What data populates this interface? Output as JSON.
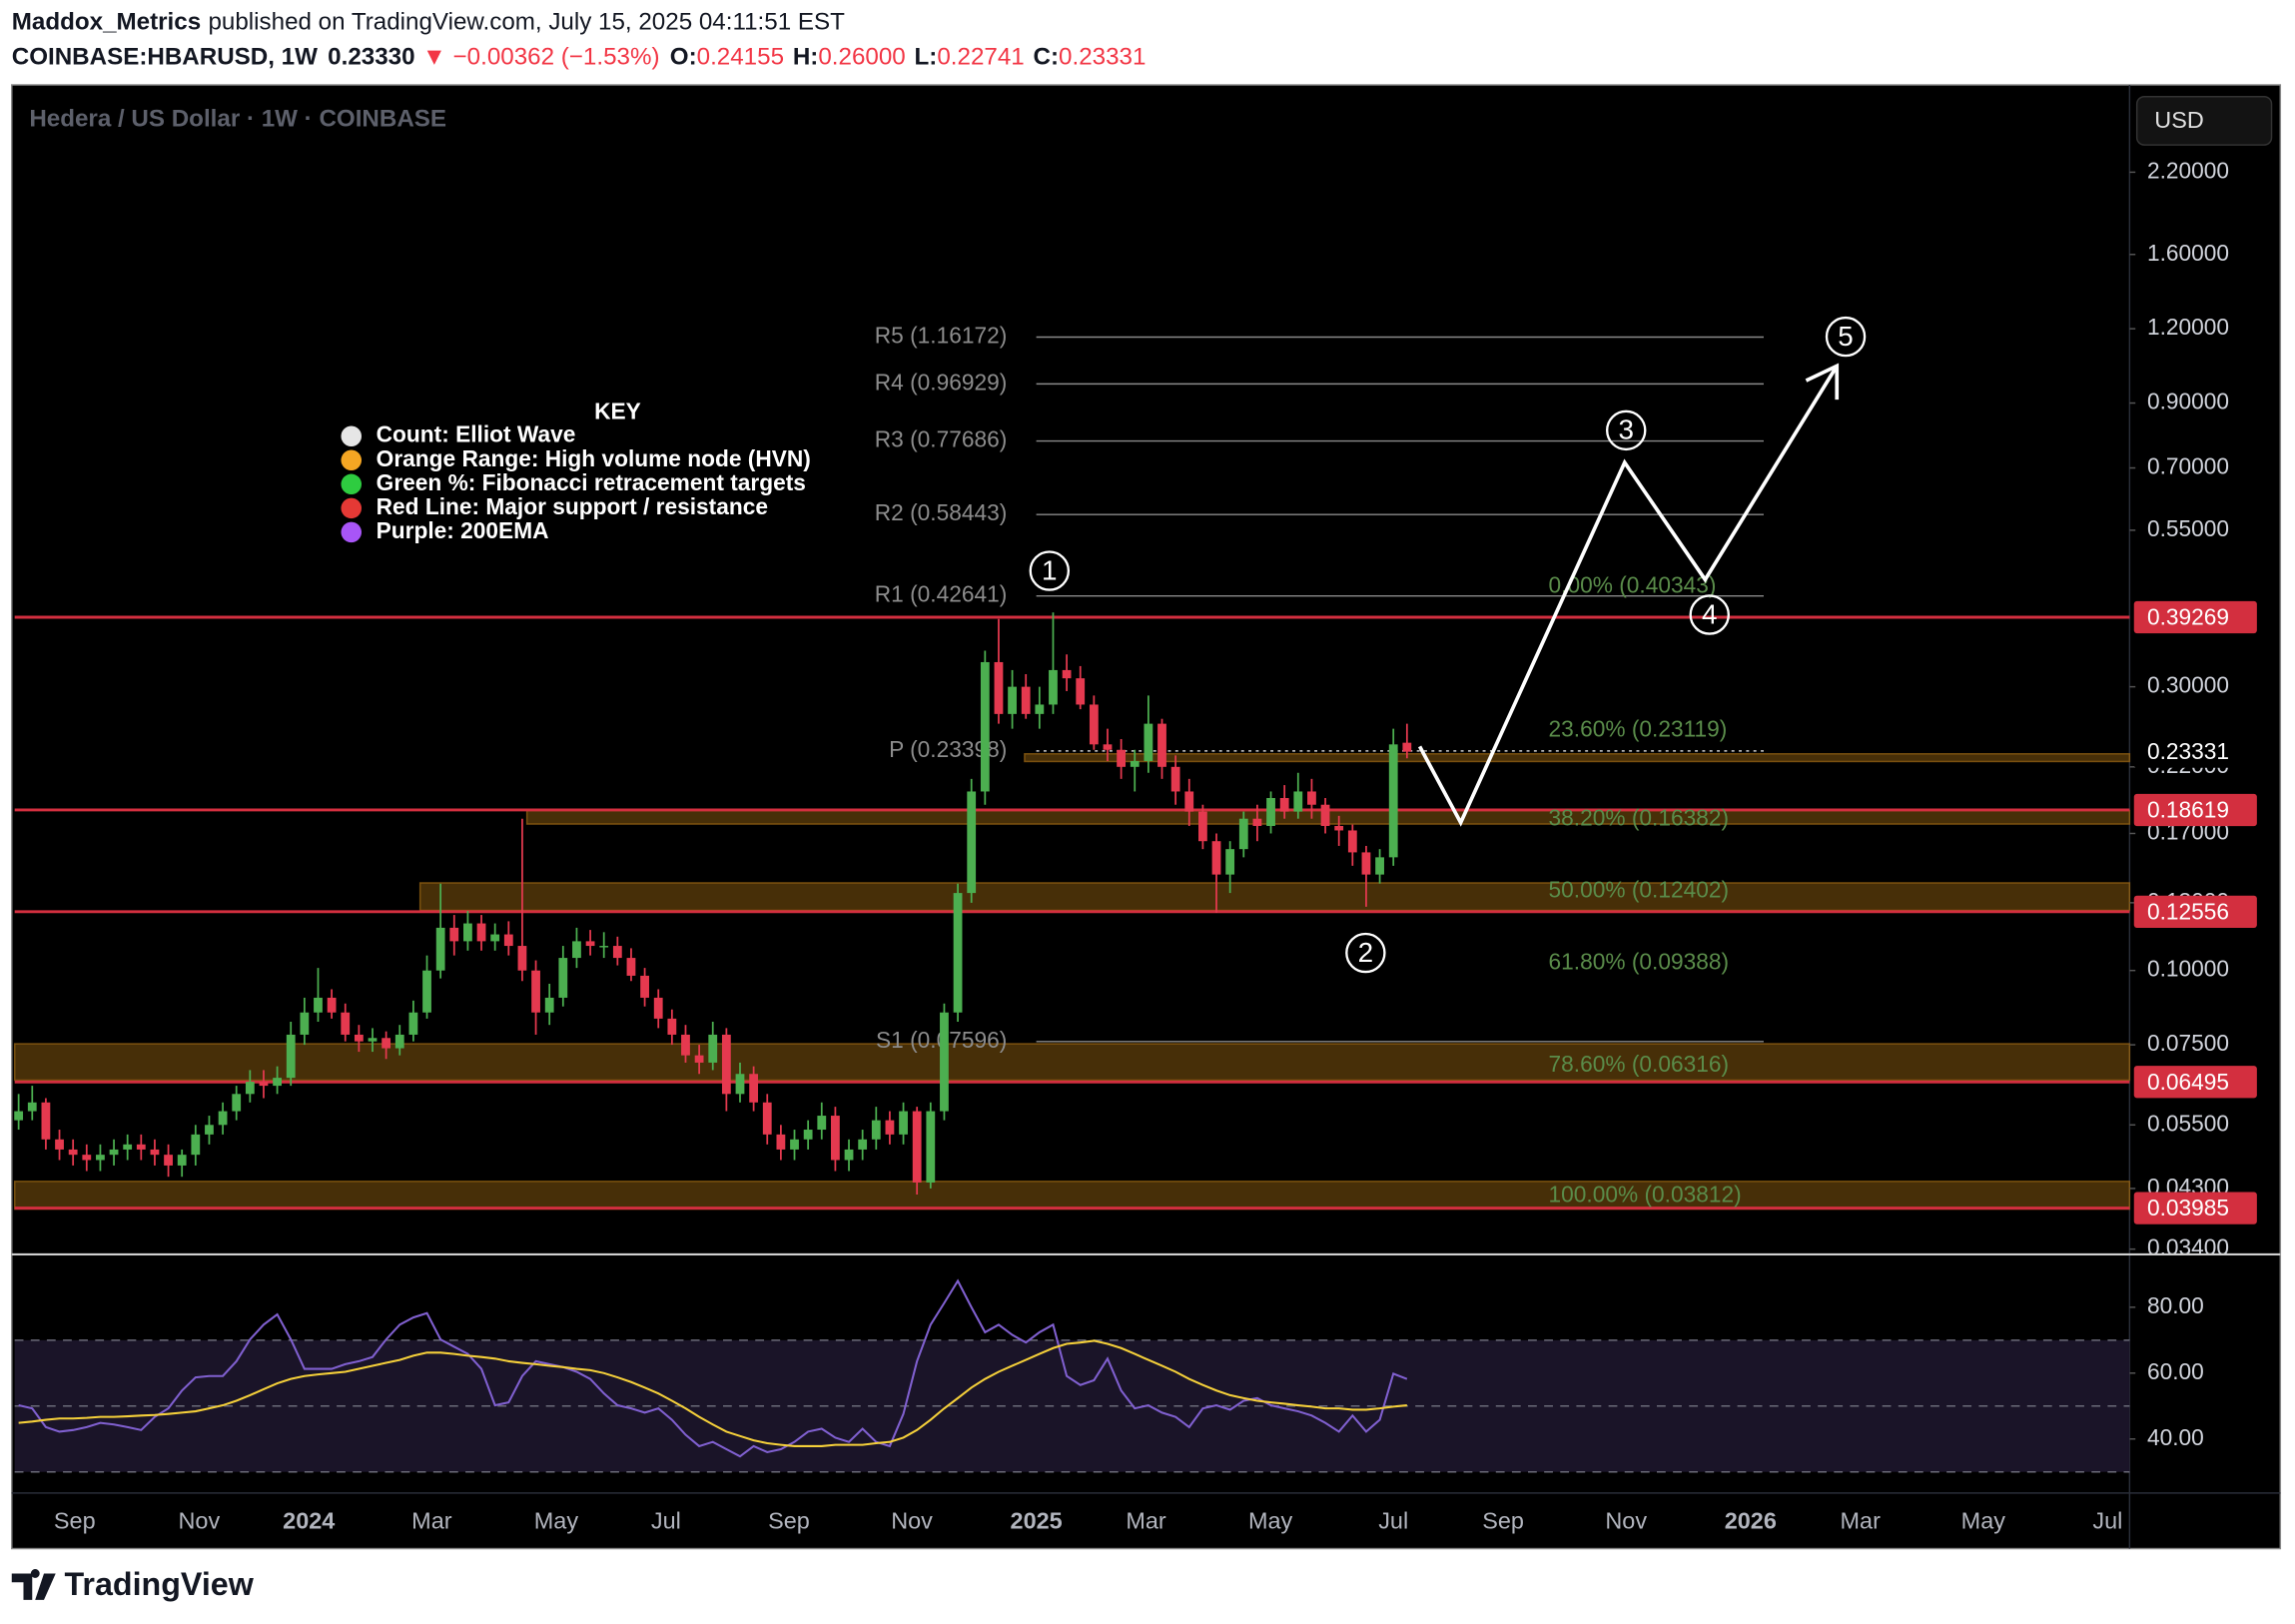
{
  "header": {
    "author": "Maddox_Metrics",
    "published": "published on TradingView.com, July 15, 2025 04:11:51 EST",
    "symbol": "COINBASE:HBARUSD, 1W",
    "last": "0.23330",
    "change": "▼ −0.00362 (−1.53%)",
    "ohlc": [
      {
        "key": "O:",
        "value": "0.24155"
      },
      {
        "key": "H:",
        "value": "0.26000"
      },
      {
        "key": "L:",
        "value": "0.22741"
      },
      {
        "key": "C:",
        "value": "0.23331"
      }
    ]
  },
  "footer": {
    "brand": "TradingView"
  },
  "chart_data": [
    {
      "type": "candlestick",
      "title": "Hedera / US Dollar · 1W · COINBASE",
      "currency": "USD",
      "log_scale": true,
      "up_color": "#4caf50",
      "down_color": "#e5394f",
      "open": [
        0.056,
        0.058,
        0.06,
        0.052,
        0.05,
        0.049,
        0.048,
        0.049,
        0.05,
        0.051,
        0.05,
        0.049,
        0.047,
        0.049,
        0.053,
        0.055,
        0.058,
        0.062,
        0.065,
        0.064,
        0.066,
        0.078,
        0.085,
        0.09,
        0.085,
        0.078,
        0.076,
        0.077,
        0.074,
        0.078,
        0.085,
        0.1,
        0.118,
        0.112,
        0.12,
        0.112,
        0.115,
        0.11,
        0.1,
        0.085,
        0.09,
        0.105,
        0.112,
        0.11,
        0.11,
        0.105,
        0.098,
        0.09,
        0.083,
        0.078,
        0.072,
        0.07,
        0.078,
        0.062,
        0.067,
        0.06,
        0.053,
        0.05,
        0.052,
        0.054,
        0.057,
        0.048,
        0.05,
        0.052,
        0.056,
        0.053,
        0.058,
        0.044,
        0.058,
        0.085,
        0.135,
        0.2,
        0.33,
        0.27,
        0.3,
        0.27,
        0.28,
        0.32,
        0.31,
        0.28,
        0.24,
        0.235,
        0.22,
        0.225,
        0.26,
        0.22,
        0.2,
        0.185,
        0.165,
        0.145,
        0.16,
        0.18,
        0.175,
        0.195,
        0.185,
        0.2,
        0.19,
        0.175,
        0.172,
        0.158,
        0.145,
        0.155,
        0.24155
      ],
      "high": [
        0.062,
        0.064,
        0.061,
        0.054,
        0.052,
        0.051,
        0.051,
        0.052,
        0.053,
        0.053,
        0.052,
        0.051,
        0.05,
        0.055,
        0.057,
        0.06,
        0.064,
        0.068,
        0.068,
        0.069,
        0.082,
        0.09,
        0.101,
        0.093,
        0.088,
        0.081,
        0.08,
        0.079,
        0.081,
        0.089,
        0.106,
        0.14,
        0.124,
        0.126,
        0.124,
        0.12,
        0.121,
        0.18,
        0.104,
        0.095,
        0.11,
        0.118,
        0.117,
        0.116,
        0.114,
        0.109,
        0.101,
        0.093,
        0.086,
        0.081,
        0.075,
        0.082,
        0.08,
        0.07,
        0.069,
        0.062,
        0.055,
        0.054,
        0.056,
        0.06,
        0.059,
        0.052,
        0.054,
        0.059,
        0.058,
        0.06,
        0.059,
        0.06,
        0.088,
        0.14,
        0.21,
        0.345,
        0.39,
        0.32,
        0.315,
        0.3,
        0.4,
        0.34,
        0.325,
        0.29,
        0.255,
        0.245,
        0.235,
        0.29,
        0.265,
        0.23,
        0.21,
        0.19,
        0.17,
        0.165,
        0.185,
        0.19,
        0.2,
        0.205,
        0.215,
        0.21,
        0.195,
        0.182,
        0.176,
        0.162,
        0.16,
        0.255,
        0.26
      ],
      "low": [
        0.054,
        0.056,
        0.05,
        0.048,
        0.047,
        0.046,
        0.046,
        0.047,
        0.048,
        0.048,
        0.047,
        0.045,
        0.045,
        0.047,
        0.051,
        0.053,
        0.056,
        0.06,
        0.061,
        0.062,
        0.064,
        0.075,
        0.082,
        0.083,
        0.076,
        0.073,
        0.073,
        0.071,
        0.072,
        0.076,
        0.083,
        0.097,
        0.106,
        0.108,
        0.108,
        0.108,
        0.106,
        0.096,
        0.078,
        0.081,
        0.087,
        0.101,
        0.106,
        0.105,
        0.102,
        0.096,
        0.087,
        0.08,
        0.075,
        0.07,
        0.067,
        0.068,
        0.058,
        0.06,
        0.058,
        0.051,
        0.048,
        0.048,
        0.05,
        0.052,
        0.046,
        0.046,
        0.048,
        0.05,
        0.051,
        0.051,
        0.042,
        0.043,
        0.056,
        0.082,
        0.13,
        0.19,
        0.26,
        0.255,
        0.265,
        0.255,
        0.27,
        0.295,
        0.275,
        0.235,
        0.225,
        0.21,
        0.2,
        0.215,
        0.21,
        0.19,
        0.175,
        0.16,
        0.125,
        0.135,
        0.155,
        0.165,
        0.17,
        0.18,
        0.18,
        0.18,
        0.17,
        0.162,
        0.15,
        0.128,
        0.14,
        0.15,
        0.22741
      ],
      "close": [
        0.058,
        0.06,
        0.052,
        0.05,
        0.049,
        0.048,
        0.049,
        0.05,
        0.051,
        0.05,
        0.049,
        0.047,
        0.049,
        0.053,
        0.055,
        0.058,
        0.062,
        0.065,
        0.064,
        0.066,
        0.078,
        0.085,
        0.09,
        0.085,
        0.078,
        0.076,
        0.077,
        0.074,
        0.078,
        0.085,
        0.1,
        0.118,
        0.112,
        0.12,
        0.112,
        0.115,
        0.11,
        0.1,
        0.085,
        0.09,
        0.105,
        0.112,
        0.11,
        0.11,
        0.105,
        0.098,
        0.09,
        0.083,
        0.078,
        0.072,
        0.07,
        0.078,
        0.062,
        0.067,
        0.06,
        0.053,
        0.05,
        0.052,
        0.054,
        0.057,
        0.048,
        0.05,
        0.052,
        0.056,
        0.053,
        0.058,
        0.044,
        0.058,
        0.085,
        0.135,
        0.2,
        0.33,
        0.27,
        0.3,
        0.27,
        0.28,
        0.32,
        0.31,
        0.28,
        0.24,
        0.235,
        0.22,
        0.225,
        0.26,
        0.22,
        0.2,
        0.185,
        0.165,
        0.145,
        0.16,
        0.18,
        0.175,
        0.195,
        0.185,
        0.2,
        0.19,
        0.175,
        0.172,
        0.158,
        0.145,
        0.155,
        0.24,
        0.23331
      ],
      "ylim": [
        0.0335,
        3.05
      ],
      "yticks": [
        {
          "value": 2.2,
          "label": "2.20000"
        },
        {
          "value": 1.6,
          "label": "1.60000"
        },
        {
          "value": 1.2,
          "label": "1.20000"
        },
        {
          "value": 0.9,
          "label": "0.90000"
        },
        {
          "value": 0.7,
          "label": "0.70000"
        },
        {
          "value": 0.55,
          "label": "0.55000"
        },
        {
          "value": 0.3,
          "label": "0.30000"
        },
        {
          "value": 0.22,
          "label": "0.22000"
        },
        {
          "value": 0.17,
          "label": "0.17000"
        },
        {
          "value": 0.13,
          "label": "0.13000"
        },
        {
          "value": 0.1,
          "label": "0.10000"
        },
        {
          "value": 0.075,
          "label": "0.07500"
        },
        {
          "value": 0.055,
          "label": "0.05500"
        },
        {
          "value": 0.043,
          "label": "0.04300"
        },
        {
          "value": 0.034,
          "label": "0.03400"
        }
      ],
      "xticks": [
        "Sep",
        "Nov",
        "2024",
        "Mar",
        "May",
        "Jul",
        "Sep",
        "Nov",
        "2025",
        "Mar",
        "May",
        "Jul",
        "Sep",
        "Nov",
        "2026",
        "Mar",
        "May",
        "Jul"
      ],
      "support_resistance": {
        "color": "#d32f3f",
        "values": [
          0.39269,
          0.18619,
          0.12556,
          0.06495,
          0.03985
        ]
      },
      "last_price": 0.23331,
      "hvn_zones": [
        [
          0.2314,
          0.2246
        ],
        [
          0.1857,
          0.1763
        ],
        [
          0.1404,
          0.1262
        ],
        [
          0.0753,
          0.0654
        ],
        [
          0.0442,
          0.0397
        ]
      ],
      "pivots": [
        {
          "label": "R5 (1.16172)",
          "value": 1.16172
        },
        {
          "label": "R4 (0.96929)",
          "value": 0.96929
        },
        {
          "label": "R3 (0.77686)",
          "value": 0.77686
        },
        {
          "label": "R2 (0.58443)",
          "value": 0.58443
        },
        {
          "label": "R1 (0.42641)",
          "value": 0.42641
        },
        {
          "label": "P (0.23398)",
          "value": 0.23398,
          "dotted": true
        },
        {
          "label": "S1 (0.07596)",
          "value": 0.07596
        }
      ],
      "fib": [
        {
          "label": "0.00% (0.40343)",
          "value": 0.40343
        },
        {
          "label": "23.60% (0.23119)",
          "value": 0.23119
        },
        {
          "label": "38.20% (0.16382)",
          "value": 0.16382
        },
        {
          "label": "50.00% (0.12402)",
          "value": 0.12402
        },
        {
          "label": "61.80% (0.09388)",
          "value": 0.09388
        },
        {
          "label": "78.60% (0.06316)",
          "value": 0.06316
        },
        {
          "label": "100.00% (0.03812)",
          "value": 0.03812
        }
      ],
      "waves": [
        "1",
        "2",
        "3",
        "4",
        "5"
      ],
      "key": {
        "title": "KEY",
        "items": [
          {
            "text": "Count: Elliot Wave",
            "color": "#e6e6e6"
          },
          {
            "text": "Orange Range: High volume node (HVN)",
            "color": "#f5a623"
          },
          {
            "text": "Green %: Fibonacci retracement targets",
            "color": "#2ecc40"
          },
          {
            "text": "Red Line: Major support / resistance",
            "color": "#e53935"
          },
          {
            "text": "Purple: 200EMA",
            "color": "#a855f7"
          }
        ]
      }
    },
    {
      "type": "line",
      "ylim": [
        23.6,
        95.6
      ],
      "yticks": [
        {
          "value": 80,
          "label": "80.00"
        },
        {
          "value": 60,
          "label": "60.00"
        },
        {
          "value": 40,
          "label": "40.00"
        }
      ],
      "bands": [
        70,
        50,
        30
      ],
      "series": [
        {
          "color": "#8060d0",
          "values": [
            50.2,
            49.3,
            43.6,
            42.2,
            42.7,
            43.6,
            44.9,
            44.4,
            43.6,
            42.7,
            46.7,
            49.3,
            54.7,
            58.7,
            59.1,
            59.1,
            63.6,
            70.2,
            74.7,
            77.8,
            70.2,
            61.3,
            61.3,
            61.3,
            62.7,
            63.6,
            64.9,
            70.2,
            74.7,
            76.9,
            78.2,
            70.2,
            68,
            65.8,
            61.3,
            50.2,
            51.1,
            59.1,
            63.6,
            62.7,
            61.8,
            60.4,
            58.2,
            53.8,
            50.2,
            49.3,
            48,
            49.3,
            45.8,
            41.3,
            37.8,
            39.1,
            36.9,
            34.7,
            37.8,
            36,
            36.9,
            39.1,
            42.2,
            43.1,
            40.4,
            39.1,
            43.1,
            39.1,
            37.8,
            47.6,
            63.6,
            74.7,
            81.3,
            88,
            80,
            72.4,
            74.7,
            71.6,
            69.3,
            72.4,
            74.7,
            59.1,
            56.4,
            57.8,
            64.4,
            54.7,
            49.3,
            50.2,
            48,
            46.7,
            43.6,
            49.3,
            50.2,
            48.9,
            51.6,
            52.4,
            50.2,
            49.3,
            48.4,
            47.1,
            44.9,
            42.2,
            47.1,
            42.2,
            45.8,
            59.8,
            58.2
          ]
        },
        {
          "color": "#f5d03a",
          "values": [
            44.9,
            45.3,
            45.8,
            46.2,
            46.2,
            46.4,
            46.7,
            46.7,
            46.9,
            47.1,
            47.3,
            47.6,
            48,
            48.4,
            49.3,
            50.2,
            51.6,
            53.3,
            55.1,
            56.9,
            58.2,
            59.1,
            59.6,
            60,
            60.4,
            61.3,
            62.2,
            63.1,
            64,
            65.3,
            66.2,
            66.2,
            65.8,
            65.3,
            64.9,
            64.4,
            63.6,
            63.1,
            62.7,
            62.2,
            61.8,
            61.3,
            60.9,
            60,
            58.7,
            57.3,
            55.6,
            53.8,
            51.6,
            49.3,
            46.7,
            44.4,
            42.2,
            40.9,
            39.6,
            38.7,
            38.2,
            37.8,
            37.8,
            37.8,
            38.2,
            38.2,
            38.2,
            38.7,
            39.1,
            40.4,
            42.7,
            45.8,
            49.3,
            52.4,
            55.6,
            58.2,
            60.4,
            62.2,
            64,
            65.8,
            67.6,
            68.9,
            69.3,
            69.8,
            68.9,
            67.6,
            65.8,
            64,
            62.2,
            60.4,
            58.2,
            56.4,
            54.7,
            53.3,
            52.4,
            51.6,
            51.1,
            50.7,
            50.2,
            49.8,
            49.3,
            49.3,
            48.9,
            48.9,
            49.3,
            49.8,
            50.2
          ]
        }
      ]
    }
  ]
}
